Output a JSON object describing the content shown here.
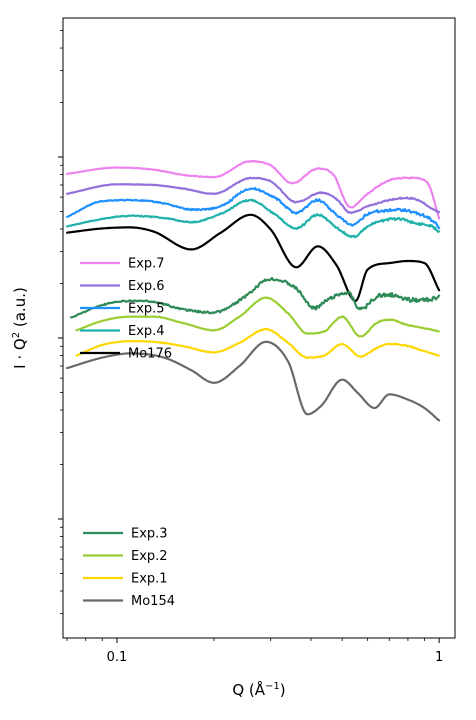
{
  "chart_data": {
    "type": "line",
    "title": "",
    "xlabel": "Q (Å",
    "xlabel_sup": "−1",
    "xlabel_close": ")",
    "ylabel": "I · Q",
    "ylabel_sup": "2",
    "ylabel_unit": " (a.u.)",
    "x_scale": "log",
    "y_scale": "log",
    "xlim": [
      0.068,
      1.12
    ],
    "x_ticks": [
      {
        "value": 0.1,
        "label": "0.1"
      },
      {
        "value": 1,
        "label": "1"
      }
    ],
    "y_ticks": "none",
    "grid": false,
    "legends": [
      {
        "placement": "middle-left",
        "entries": [
          "Exp.7",
          "Exp.6",
          "Exp.5",
          "Exp.4",
          "Mo176"
        ]
      },
      {
        "placement": "bottom-left",
        "entries": [
          "Exp.3",
          "Exp.2",
          "Exp.1",
          "Mo154"
        ]
      }
    ],
    "series": [
      {
        "name": "Exp.7",
        "color": "#EE82EE",
        "noise": 0.005,
        "x": [
          0.07,
          0.1,
          0.13,
          0.16,
          0.2,
          0.26,
          0.3,
          0.35,
          0.42,
          0.47,
          0.53,
          0.6,
          0.7,
          0.8,
          0.88,
          0.93,
          1.0
        ],
        "y": [
          3.15,
          3.45,
          3.35,
          3.1,
          3.0,
          3.75,
          3.55,
          2.7,
          3.4,
          3.1,
          1.55,
          2.2,
          2.85,
          2.95,
          2.9,
          2.6,
          1.0
        ]
      },
      {
        "name": "Exp.6",
        "color": "#9370DB",
        "noise": 0.006,
        "x": [
          0.07,
          0.1,
          0.13,
          0.16,
          0.2,
          0.26,
          0.3,
          0.36,
          0.43,
          0.48,
          0.53,
          0.6,
          0.7,
          0.78,
          0.86,
          0.95,
          1.0
        ],
        "y": [
          2.2,
          2.65,
          2.62,
          2.45,
          2.2,
          2.95,
          2.8,
          1.8,
          2.25,
          1.95,
          1.3,
          1.6,
          1.9,
          2.0,
          1.9,
          1.5,
          1.3
        ]
      },
      {
        "name": "Exp.5",
        "color": "#1E90FF",
        "noise": 0.012,
        "x": [
          0.07,
          0.09,
          0.11,
          0.14,
          0.17,
          0.21,
          0.26,
          0.31,
          0.36,
          0.42,
          0.48,
          0.54,
          0.6,
          0.68,
          0.76,
          0.84,
          0.95,
          1.0
        ],
        "y": [
          1.1,
          1.85,
          1.9,
          1.75,
          1.45,
          1.6,
          2.45,
          2.0,
          1.3,
          1.9,
          1.2,
          0.7,
          1.25,
          1.4,
          1.45,
          1.3,
          0.95,
          0.6
        ]
      },
      {
        "name": "Exp.4",
        "color": "#20B2AA",
        "noise": 0.01,
        "x": [
          0.07,
          0.09,
          0.11,
          0.14,
          0.17,
          0.21,
          0.26,
          0.31,
          0.36,
          0.42,
          0.48,
          0.54,
          0.6,
          0.68,
          0.76,
          0.84,
          0.95,
          1.0
        ],
        "y": [
          0.65,
          1.0,
          1.15,
          1.05,
          0.85,
          1.25,
          1.9,
          1.2,
          0.55,
          1.2,
          0.6,
          0.15,
          0.65,
          0.95,
          1.0,
          0.8,
          0.65,
          0.4
        ]
      },
      {
        "name": "Mo176",
        "color": "#000000",
        "noise": 0.0,
        "x": [
          0.07,
          0.09,
          0.11,
          0.13,
          0.17,
          0.21,
          0.26,
          0.3,
          0.36,
          0.42,
          0.48,
          0.55,
          0.6,
          0.7,
          0.8,
          0.9,
          1.0
        ],
        "y": [
          0.35,
          0.55,
          0.6,
          0.4,
          -0.45,
          0.35,
          1.2,
          0.5,
          -1.3,
          -0.3,
          -1.2,
          -2.9,
          -1.4,
          -1.1,
          -1.0,
          -1.1,
          -2.4
        ]
      },
      {
        "name": "Exp.3",
        "color": "#2E8B57",
        "noise": 0.018,
        "x": [
          0.072,
          0.09,
          0.11,
          0.13,
          0.16,
          0.2,
          0.25,
          0.3,
          0.36,
          0.41,
          0.45,
          0.52,
          0.57,
          0.64,
          0.7,
          0.8,
          0.9,
          1.0
        ],
        "y": [
          -3.7,
          -3.1,
          -2.9,
          -2.95,
          -3.3,
          -3.45,
          -2.7,
          -1.85,
          -2.3,
          -3.25,
          -2.85,
          -2.5,
          -3.3,
          -2.7,
          -2.6,
          -2.85,
          -2.85,
          -2.75
        ]
      },
      {
        "name": "Exp.2",
        "color": "#9ACD32",
        "noise": 0.004,
        "x": [
          0.075,
          0.09,
          0.11,
          0.13,
          0.16,
          0.2,
          0.24,
          0.29,
          0.34,
          0.39,
          0.44,
          0.5,
          0.57,
          0.64,
          0.7,
          0.8,
          0.9,
          1.0
        ],
        "y": [
          -4.3,
          -3.85,
          -3.65,
          -3.65,
          -3.95,
          -4.3,
          -3.65,
          -2.75,
          -3.5,
          -4.45,
          -4.35,
          -3.65,
          -4.6,
          -3.95,
          -3.8,
          -4.05,
          -4.2,
          -4.35
        ]
      },
      {
        "name": "Exp.1",
        "color": "#FFD700",
        "noise": 0.004,
        "x": [
          0.075,
          0.09,
          0.11,
          0.13,
          0.16,
          0.2,
          0.24,
          0.29,
          0.34,
          0.39,
          0.44,
          0.5,
          0.57,
          0.64,
          0.7,
          0.8,
          0.9,
          1.0
        ],
        "y": [
          -5.5,
          -5.0,
          -4.82,
          -4.85,
          -5.05,
          -5.35,
          -4.9,
          -4.25,
          -4.9,
          -5.6,
          -5.5,
          -4.95,
          -5.55,
          -5.15,
          -4.95,
          -5.05,
          -5.3,
          -5.5
        ]
      },
      {
        "name": "Mo154",
        "color": "#696969",
        "noise": 0.0,
        "x": [
          0.07,
          0.09,
          0.11,
          0.14,
          0.17,
          0.2,
          0.24,
          0.29,
          0.34,
          0.39,
          0.43,
          0.5,
          0.56,
          0.63,
          0.7,
          0.8,
          0.9,
          1.0
        ],
        "y": [
          -6.1,
          -5.6,
          -5.4,
          -5.6,
          -6.2,
          -6.8,
          -6.0,
          -4.85,
          -5.8,
          -8.3,
          -7.9,
          -6.65,
          -7.3,
          -8.0,
          -7.35,
          -7.6,
          -8.0,
          -8.6
        ]
      }
    ]
  }
}
